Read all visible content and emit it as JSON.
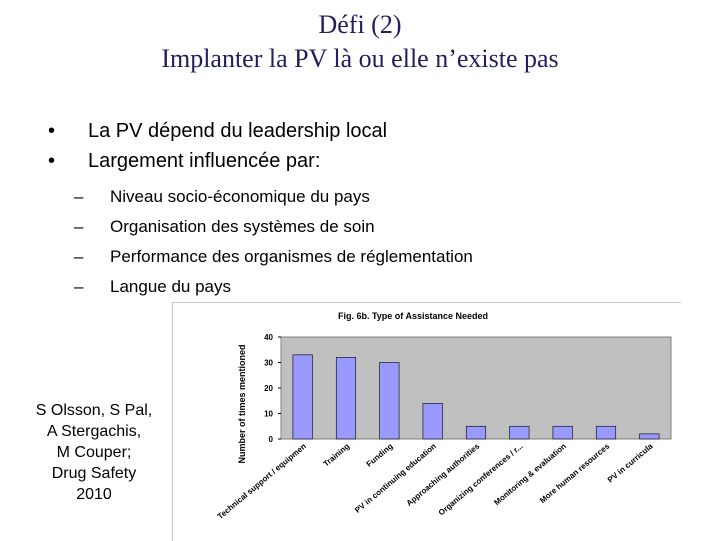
{
  "slide": {
    "title_line1": "Défi (2)",
    "title_line2": "Implanter la PV là ou elle n’existe pas",
    "bullets": [
      "La PV dépend du leadership local",
      "Largement influencée par:"
    ],
    "bullet_symbol": "•",
    "subbullet_symbol": "–",
    "subbullets": [
      "Niveau socio-économique du pays",
      "Organisation des systèmes de soin",
      "Performance des organismes de réglementation",
      "Langue du pays"
    ],
    "citation": [
      "S Olsson, S Pal,",
      "A Stergachis,",
      "M Couper;",
      "Drug Safety",
      "2010"
    ]
  },
  "chart_data": {
    "type": "bar",
    "title": "Fig. 6b. Type of Assistance Needed",
    "xlabel": "",
    "ylabel": "Number of times mentioned",
    "ylim": [
      0,
      40
    ],
    "yticks": [
      0,
      10,
      20,
      30,
      40
    ],
    "categories": [
      "Technical support / equipmen",
      "Training",
      "Funding",
      "PV in continuing education",
      "Approaching authorities",
      "Organizing conferences / r...",
      "Monitoring & evaluation",
      "More human resources",
      "PV in curricula"
    ],
    "values": [
      33,
      32,
      30,
      14,
      5,
      5,
      5,
      5,
      2
    ],
    "bar_color": "#9999ff",
    "plot_bg": "#c0c0c0",
    "grid": false,
    "legend": "none"
  }
}
